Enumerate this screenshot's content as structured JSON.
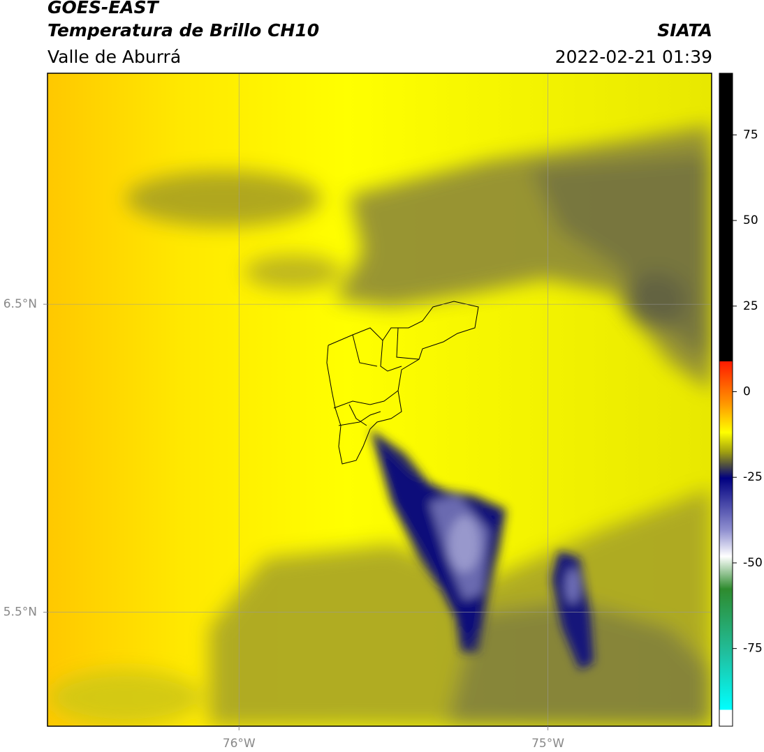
{
  "header": {
    "title": "GOES-EAST",
    "subtitle": "Temperatura de Brillo CH10",
    "region": "Valle de Aburrá",
    "source": "SIATA",
    "datetime": "2022-02-21 01:39"
  },
  "map": {
    "xlim": [
      -76.62,
      -74.47
    ],
    "ylim": [
      5.13,
      7.25
    ],
    "xticks": [
      {
        "value": -76,
        "label": "76°W"
      },
      {
        "value": -75,
        "label": "75°W"
      }
    ],
    "yticks": [
      {
        "value": 6.5,
        "label": "6.5°N"
      },
      {
        "value": 5.5,
        "label": "5.5°N"
      }
    ],
    "grid": true
  },
  "colorbar": {
    "lim": [
      -93,
      93
    ],
    "ticks": [
      75,
      50,
      25,
      0,
      -25,
      -50,
      -75
    ]
  }
}
